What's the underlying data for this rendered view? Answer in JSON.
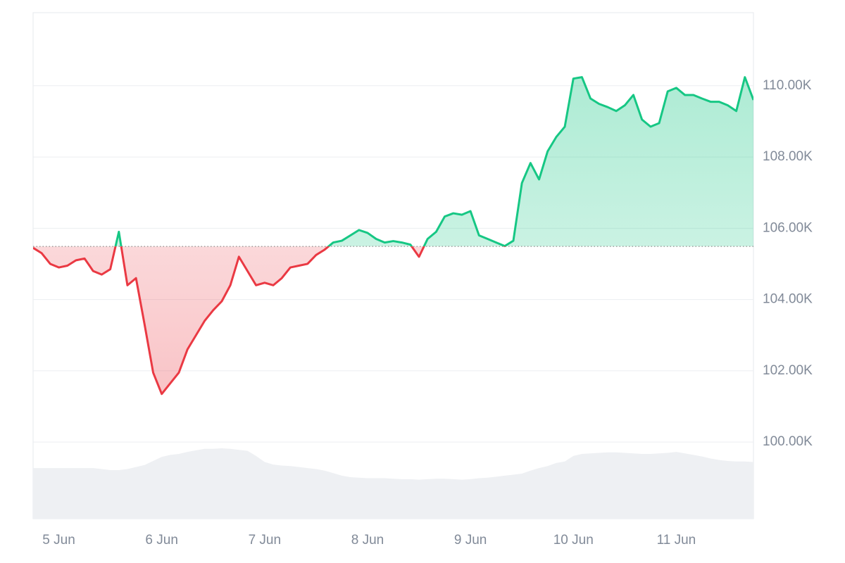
{
  "chart_data": {
    "type": "line",
    "x": [
      null,
      null,
      null,
      "5 Jun",
      null,
      null,
      null,
      null,
      null,
      null,
      null,
      null,
      null,
      null,
      null,
      "6 Jun",
      null,
      null,
      null,
      null,
      null,
      null,
      null,
      null,
      null,
      null,
      null,
      "7 Jun",
      null,
      null,
      null,
      null,
      null,
      null,
      null,
      null,
      null,
      null,
      null,
      "8 Jun",
      null,
      null,
      null,
      null,
      null,
      null,
      null,
      null,
      null,
      null,
      null,
      "9 Jun",
      null,
      null,
      null,
      null,
      null,
      null,
      null,
      null,
      null,
      null,
      null,
      "10 Jun",
      null,
      null,
      null,
      null,
      null,
      null,
      null,
      null,
      null,
      null,
      null,
      "11 Jun",
      null,
      null,
      null,
      null,
      null,
      null,
      null,
      null,
      null
    ],
    "values": [
      105450,
      105300,
      105000,
      104900,
      104950,
      105100,
      105150,
      104800,
      104700,
      104850,
      105900,
      104400,
      104600,
      103300,
      101950,
      101350,
      101650,
      101950,
      102600,
      103000,
      103400,
      103700,
      103950,
      104400,
      105200,
      104800,
      104400,
      104470,
      104400,
      104600,
      104900,
      104950,
      105000,
      105250,
      105400,
      105600,
      105650,
      105800,
      105950,
      105870,
      105700,
      105600,
      105640,
      105600,
      105540,
      105200,
      105700,
      105900,
      106330,
      106420,
      106380,
      106480,
      105800,
      105700,
      105600,
      105500,
      105650,
      107270,
      107830,
      107370,
      108160,
      108560,
      108850,
      110200,
      110240,
      109640,
      109490,
      109400,
      109290,
      109450,
      109740,
      109050,
      108850,
      108950,
      109840,
      109940,
      109740,
      109740,
      109640,
      109550,
      109550,
      109450,
      109290,
      110240,
      109600
    ],
    "volume": [
      10,
      10,
      10,
      10,
      10,
      10,
      10,
      10,
      9.8,
      9.6,
      9.6,
      9.8,
      10.2,
      10.6,
      11.4,
      12.2,
      12.6,
      12.8,
      13.2,
      13.5,
      13.8,
      13.8,
      13.9,
      13.8,
      13.6,
      13.4,
      12.4,
      11.2,
      10.7,
      10.5,
      10.4,
      10.2,
      10,
      9.8,
      9.5,
      9,
      8.5,
      8.2,
      8.1,
      8,
      8,
      8,
      7.9,
      7.8,
      7.8,
      7.7,
      7.8,
      7.9,
      7.9,
      7.8,
      7.7,
      7.8,
      8,
      8.1,
      8.3,
      8.5,
      8.7,
      8.9,
      9.5,
      10,
      10.4,
      11,
      11.3,
      12.4,
      12.8,
      12.9,
      13,
      13.1,
      13.1,
      13,
      12.9,
      12.8,
      12.8,
      12.9,
      13,
      13.2,
      12.9,
      12.6,
      12.3,
      11.9,
      11.6,
      11.4,
      11.3,
      11.3,
      11.2
    ],
    "baseline": 105490,
    "up_color": "#16c784",
    "down_color": "#ea3943",
    "volume_color": "#eef0f3",
    "ylim": [
      97850,
      112050
    ],
    "yticks": [
      {
        "value": 100000,
        "label": "100.00K"
      },
      {
        "value": 102000,
        "label": "102.00K"
      },
      {
        "value": 104000,
        "label": "104.00K"
      },
      {
        "value": 106000,
        "label": "106.00K"
      },
      {
        "value": 108000,
        "label": "108.00K"
      },
      {
        "value": 110000,
        "label": "110.00K"
      }
    ],
    "y2lim": [
      0,
      100
    ],
    "grid": true
  }
}
